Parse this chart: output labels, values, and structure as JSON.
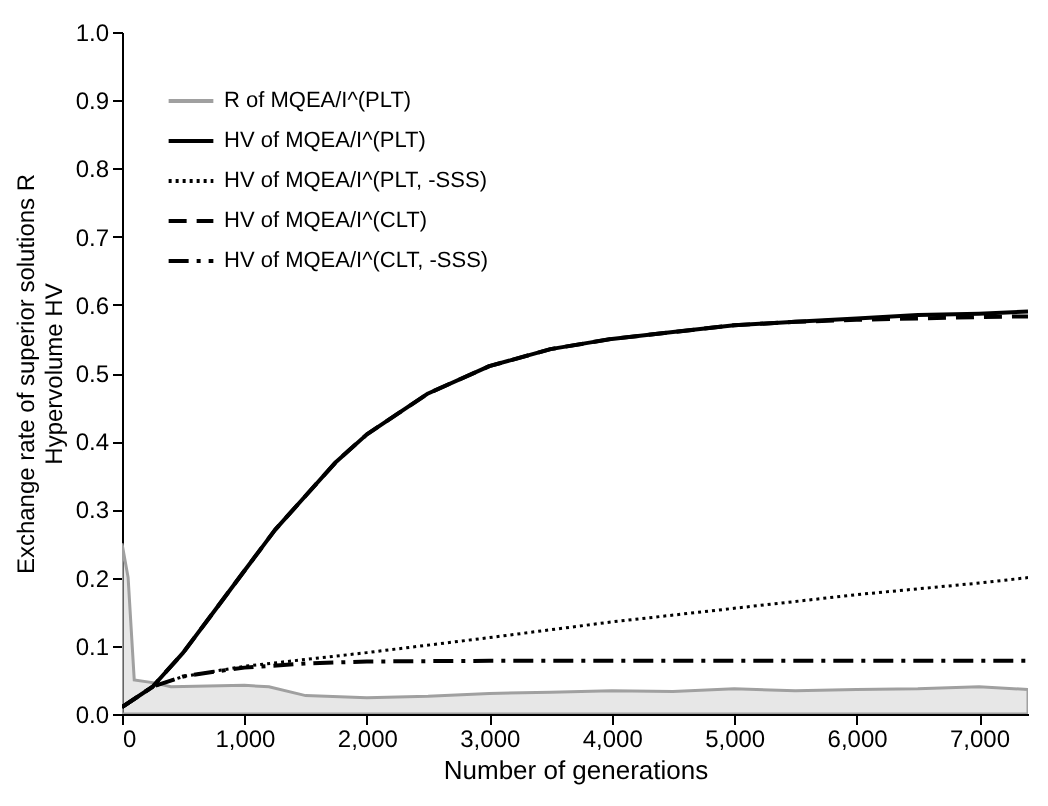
{
  "chart_data": {
    "type": "line",
    "xlabel": "Number of generations",
    "ylabel": "Exchange rate of superior solutions R\nHypervolume HV",
    "xlim": [
      0,
      7400
    ],
    "ylim": [
      0,
      1
    ],
    "xticks": [
      {
        "value": 0,
        "label": "0"
      },
      {
        "value": 1000,
        "label": "1,000"
      },
      {
        "value": 2000,
        "label": "2,000"
      },
      {
        "value": 3000,
        "label": "3,000"
      },
      {
        "value": 4000,
        "label": "4,000"
      },
      {
        "value": 5000,
        "label": "5,000"
      },
      {
        "value": 6000,
        "label": "6,000"
      },
      {
        "value": 7000,
        "label": "7,000"
      }
    ],
    "yticks": [
      {
        "value": 0,
        "label": "0.0"
      },
      {
        "value": 0.1,
        "label": "0.1"
      },
      {
        "value": 0.2,
        "label": "0.2"
      },
      {
        "value": 0.3,
        "label": "0.3"
      },
      {
        "value": 0.4,
        "label": "0.4"
      },
      {
        "value": 0.5,
        "label": "0.5"
      },
      {
        "value": 0.6,
        "label": "0.6"
      },
      {
        "value": 0.7,
        "label": "0.7"
      },
      {
        "value": 0.8,
        "label": "0.8"
      },
      {
        "value": 0.9,
        "label": "0.9"
      },
      {
        "value": 1,
        "label": "1.0"
      }
    ],
    "grid": false,
    "legend": "top left",
    "series": [
      {
        "name": "R of MQEA/I^(PLT)",
        "type": "area",
        "color": "#a0a0a0",
        "x": [
          0,
          50,
          100,
          250,
          400,
          1000,
          1200,
          1500,
          2000,
          2500,
          3000,
          3500,
          4000,
          4500,
          5000,
          5500,
          6000,
          6500,
          7000,
          7400
        ],
        "values": [
          0.25,
          0.2,
          0.05,
          0.046,
          0.04,
          0.042,
          0.04,
          0.027,
          0.024,
          0.026,
          0.03,
          0.032,
          0.034,
          0.033,
          0.037,
          0.034,
          0.036,
          0.037,
          0.04,
          0.036
        ]
      },
      {
        "name": "HV of MQEA/I^(PLT)",
        "type": "line",
        "line_style": "solid",
        "color": "#000000",
        "x": [
          0,
          250,
          500,
          750,
          1000,
          1250,
          1500,
          1750,
          2000,
          2250,
          2500,
          3000,
          3500,
          4000,
          4500,
          5000,
          5500,
          6000,
          6500,
          7000,
          7400
        ],
        "values": [
          0.01,
          0.04,
          0.09,
          0.15,
          0.21,
          0.27,
          0.32,
          0.37,
          0.41,
          0.44,
          0.47,
          0.51,
          0.535,
          0.55,
          0.56,
          0.57,
          0.575,
          0.58,
          0.585,
          0.587,
          0.59
        ]
      },
      {
        "name": "HV of MQEA/I^(PLT, -SSS)",
        "type": "line",
        "line_style": "dotted",
        "color": "#000000",
        "x": [
          0,
          250,
          500,
          1000,
          1500,
          2000,
          3000,
          4000,
          5000,
          6000,
          7000,
          7400
        ],
        "values": [
          0.01,
          0.04,
          0.055,
          0.07,
          0.08,
          0.09,
          0.112,
          0.135,
          0.155,
          0.175,
          0.192,
          0.2
        ]
      },
      {
        "name": "HV of MQEA/I^(CLT)",
        "type": "line",
        "line_style": "dashed",
        "color": "#000000",
        "x": [
          0,
          250,
          500,
          750,
          1000,
          1250,
          1500,
          1750,
          2000,
          2250,
          2500,
          3000,
          3500,
          4000,
          4500,
          5000,
          5500,
          6000,
          6500,
          7000,
          7400
        ],
        "values": [
          0.01,
          0.04,
          0.09,
          0.15,
          0.21,
          0.27,
          0.32,
          0.37,
          0.41,
          0.44,
          0.47,
          0.51,
          0.535,
          0.55,
          0.56,
          0.57,
          0.575,
          0.578,
          0.58,
          0.582,
          0.583
        ]
      },
      {
        "name": "HV of MQEA/I^(CLT, -SSS)",
        "type": "line",
        "line_style": "dashdot",
        "color": "#000000",
        "x": [
          0,
          250,
          500,
          750,
          1000,
          1500,
          2000,
          3000,
          7400
        ],
        "values": [
          0.01,
          0.04,
          0.055,
          0.062,
          0.068,
          0.074,
          0.077,
          0.078,
          0.078
        ]
      }
    ]
  }
}
